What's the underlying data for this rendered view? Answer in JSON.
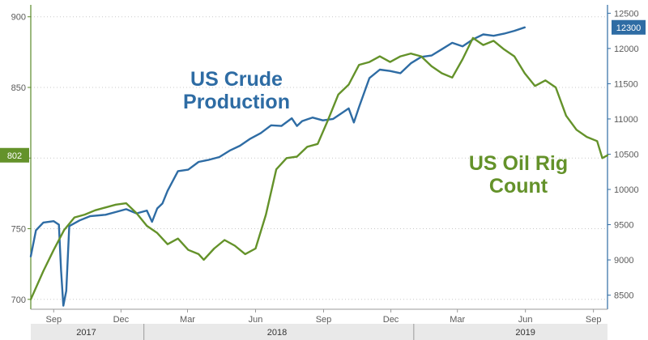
{
  "chart_data": {
    "type": "line",
    "title": "",
    "xlabel": "",
    "x_ticks": [
      {
        "label": "Sep",
        "date": "2017-09"
      },
      {
        "label": "Dec",
        "date": "2017-12"
      },
      {
        "label": "Mar",
        "date": "2018-03"
      },
      {
        "label": "Jun",
        "date": "2018-06"
      },
      {
        "label": "Sep",
        "date": "2018-09"
      },
      {
        "label": "Dec",
        "date": "2018-12"
      },
      {
        "label": "Mar",
        "date": "2019-03"
      },
      {
        "label": "Jun",
        "date": "2019-06"
      },
      {
        "label": "Sep",
        "date": "2019-09"
      }
    ],
    "x_years": [
      {
        "label": "2017",
        "date": "2017-10-15"
      },
      {
        "label": "2018",
        "date": "2018-06-30"
      },
      {
        "label": "2019",
        "date": "2019-06-01"
      }
    ],
    "x_year_separators": [
      "2018-01-01",
      "2019-01-01"
    ],
    "xlim": [
      "2017-08-01",
      "2019-09-20"
    ],
    "y_left": {
      "ylim": [
        693,
        905
      ],
      "ticks": [
        700,
        750,
        800,
        850,
        900
      ],
      "current_label": "802",
      "current_value": 802
    },
    "y_right": {
      "ylim": [
        8300,
        12550
      ],
      "ticks": [
        8500,
        9000,
        9500,
        10000,
        10500,
        11000,
        11500,
        12000,
        12500
      ],
      "current_label": "12300",
      "current_value": 12300
    },
    "grid": "horizontal-dotted",
    "series": [
      {
        "name": "US Crude Production",
        "axis": "right",
        "color": "#2e6ca4",
        "label_lines": [
          "US Crude",
          "Production"
        ],
        "points": [
          [
            "2017-08-01",
            9050
          ],
          [
            "2017-08-08",
            9420
          ],
          [
            "2017-08-18",
            9530
          ],
          [
            "2017-09-01",
            9550
          ],
          [
            "2017-09-08",
            9500
          ],
          [
            "2017-09-11",
            8850
          ],
          [
            "2017-09-14",
            8350
          ],
          [
            "2017-09-18",
            8560
          ],
          [
            "2017-09-22",
            9480
          ],
          [
            "2017-10-06",
            9560
          ],
          [
            "2017-10-20",
            9620
          ],
          [
            "2017-11-10",
            9640
          ],
          [
            "2017-11-24",
            9680
          ],
          [
            "2017-12-08",
            9720
          ],
          [
            "2017-12-22",
            9660
          ],
          [
            "2018-01-05",
            9700
          ],
          [
            "2018-01-12",
            9540
          ],
          [
            "2018-01-19",
            9730
          ],
          [
            "2018-01-26",
            9800
          ],
          [
            "2018-02-02",
            9980
          ],
          [
            "2018-02-16",
            10260
          ],
          [
            "2018-03-02",
            10280
          ],
          [
            "2018-03-16",
            10390
          ],
          [
            "2018-03-30",
            10420
          ],
          [
            "2018-04-13",
            10460
          ],
          [
            "2018-04-27",
            10550
          ],
          [
            "2018-05-11",
            10620
          ],
          [
            "2018-05-25",
            10720
          ],
          [
            "2018-06-08",
            10800
          ],
          [
            "2018-06-22",
            10910
          ],
          [
            "2018-07-06",
            10900
          ],
          [
            "2018-07-20",
            11010
          ],
          [
            "2018-07-27",
            10900
          ],
          [
            "2018-08-03",
            10970
          ],
          [
            "2018-08-17",
            11020
          ],
          [
            "2018-08-31",
            10980
          ],
          [
            "2018-09-14",
            11000
          ],
          [
            "2018-09-28",
            11100
          ],
          [
            "2018-10-05",
            11150
          ],
          [
            "2018-10-12",
            10950
          ],
          [
            "2018-10-19",
            11170
          ],
          [
            "2018-11-02",
            11580
          ],
          [
            "2018-11-16",
            11700
          ],
          [
            "2018-11-30",
            11680
          ],
          [
            "2018-12-14",
            11650
          ],
          [
            "2018-12-28",
            11790
          ],
          [
            "2019-01-11",
            11880
          ],
          [
            "2019-01-25",
            11900
          ],
          [
            "2019-02-08",
            11990
          ],
          [
            "2019-02-22",
            12080
          ],
          [
            "2019-03-08",
            12030
          ],
          [
            "2019-03-22",
            12130
          ],
          [
            "2019-04-05",
            12200
          ],
          [
            "2019-04-19",
            12180
          ],
          [
            "2019-05-03",
            12210
          ],
          [
            "2019-05-17",
            12250
          ],
          [
            "2019-05-31",
            12300
          ]
        ]
      },
      {
        "name": "US Oil Rig Count",
        "axis": "left",
        "color": "#64922a",
        "label_lines": [
          "US Oil Rig",
          "Count"
        ],
        "points": [
          [
            "2017-08-01",
            700
          ],
          [
            "2017-08-18",
            720
          ],
          [
            "2017-09-01",
            735
          ],
          [
            "2017-09-15",
            749
          ],
          [
            "2017-09-29",
            758
          ],
          [
            "2017-10-13",
            760
          ],
          [
            "2017-10-27",
            763
          ],
          [
            "2017-11-10",
            765
          ],
          [
            "2017-11-24",
            767
          ],
          [
            "2017-12-08",
            768
          ],
          [
            "2017-12-22",
            761
          ],
          [
            "2018-01-05",
            752
          ],
          [
            "2018-01-19",
            747
          ],
          [
            "2018-02-02",
            739
          ],
          [
            "2018-02-16",
            743
          ],
          [
            "2018-03-02",
            735
          ],
          [
            "2018-03-16",
            732
          ],
          [
            "2018-03-23",
            728
          ],
          [
            "2018-04-06",
            736
          ],
          [
            "2018-04-20",
            742
          ],
          [
            "2018-05-04",
            738
          ],
          [
            "2018-05-18",
            732
          ],
          [
            "2018-06-01",
            736
          ],
          [
            "2018-06-15",
            760
          ],
          [
            "2018-06-29",
            792
          ],
          [
            "2018-07-13",
            800
          ],
          [
            "2018-07-27",
            801
          ],
          [
            "2018-08-10",
            808
          ],
          [
            "2018-08-24",
            810
          ],
          [
            "2018-09-07",
            827
          ],
          [
            "2018-09-21",
            845
          ],
          [
            "2018-10-05",
            852
          ],
          [
            "2018-10-19",
            866
          ],
          [
            "2018-11-02",
            868
          ],
          [
            "2018-11-16",
            872
          ],
          [
            "2018-11-30",
            868
          ],
          [
            "2018-12-14",
            872
          ],
          [
            "2018-12-28",
            874
          ],
          [
            "2019-01-11",
            872
          ],
          [
            "2019-01-25",
            865
          ],
          [
            "2019-02-08",
            860
          ],
          [
            "2019-02-22",
            857
          ],
          [
            "2019-03-08",
            870
          ],
          [
            "2019-03-22",
            885
          ],
          [
            "2019-04-05",
            880
          ],
          [
            "2019-04-19",
            883
          ],
          [
            "2019-05-03",
            877
          ],
          [
            "2019-05-17",
            872
          ],
          [
            "2019-05-31",
            860
          ],
          [
            "2019-06-14",
            851
          ],
          [
            "2019-06-28",
            855
          ],
          [
            "2019-07-12",
            850
          ],
          [
            "2019-07-26",
            830
          ],
          [
            "2019-08-09",
            820
          ],
          [
            "2019-08-23",
            815
          ],
          [
            "2019-09-06",
            812
          ],
          [
            "2019-09-13",
            800
          ],
          [
            "2019-09-20",
            802
          ]
        ]
      }
    ]
  },
  "colors": {
    "axis": "#5a8a2a",
    "year_band": "#e9e9e9",
    "grid": "#c8c8c8",
    "tick_text": "#5a5a5a"
  }
}
